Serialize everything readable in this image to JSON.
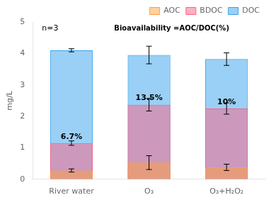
{
  "chart_data": {
    "type": "bar",
    "categories": [
      "River water",
      "O₃",
      "O₃+H₂O₂"
    ],
    "series": [
      {
        "name": "DOC",
        "values": [
          4.1,
          3.95,
          3.82
        ],
        "errors": [
          0.05,
          0.28,
          0.2
        ]
      },
      {
        "name": "BDOC",
        "values": [
          1.15,
          2.37,
          2.25
        ],
        "errors": [
          0.07,
          0.2,
          0.18
        ]
      },
      {
        "name": "AOC",
        "values": [
          0.28,
          0.53,
          0.38
        ],
        "errors": [
          0.05,
          0.22,
          0.1
        ]
      }
    ],
    "ylabel": "mg/L",
    "ylim": [
      0,
      5
    ],
    "yticks": [
      0,
      1,
      2,
      3,
      4,
      5
    ],
    "grid": false,
    "legend": "upper right",
    "point_labels": [
      {
        "category": "River water",
        "y": 1.22,
        "label": "6.7%"
      },
      {
        "category": "O₃",
        "y": 2.45,
        "label": "13.5%"
      },
      {
        "category": "O₃+H₂O₂",
        "y": 2.32,
        "label": "10%"
      }
    ],
    "annotations": [
      "n=3",
      "Bioavailability =AOC/DOC(%)"
    ]
  }
}
